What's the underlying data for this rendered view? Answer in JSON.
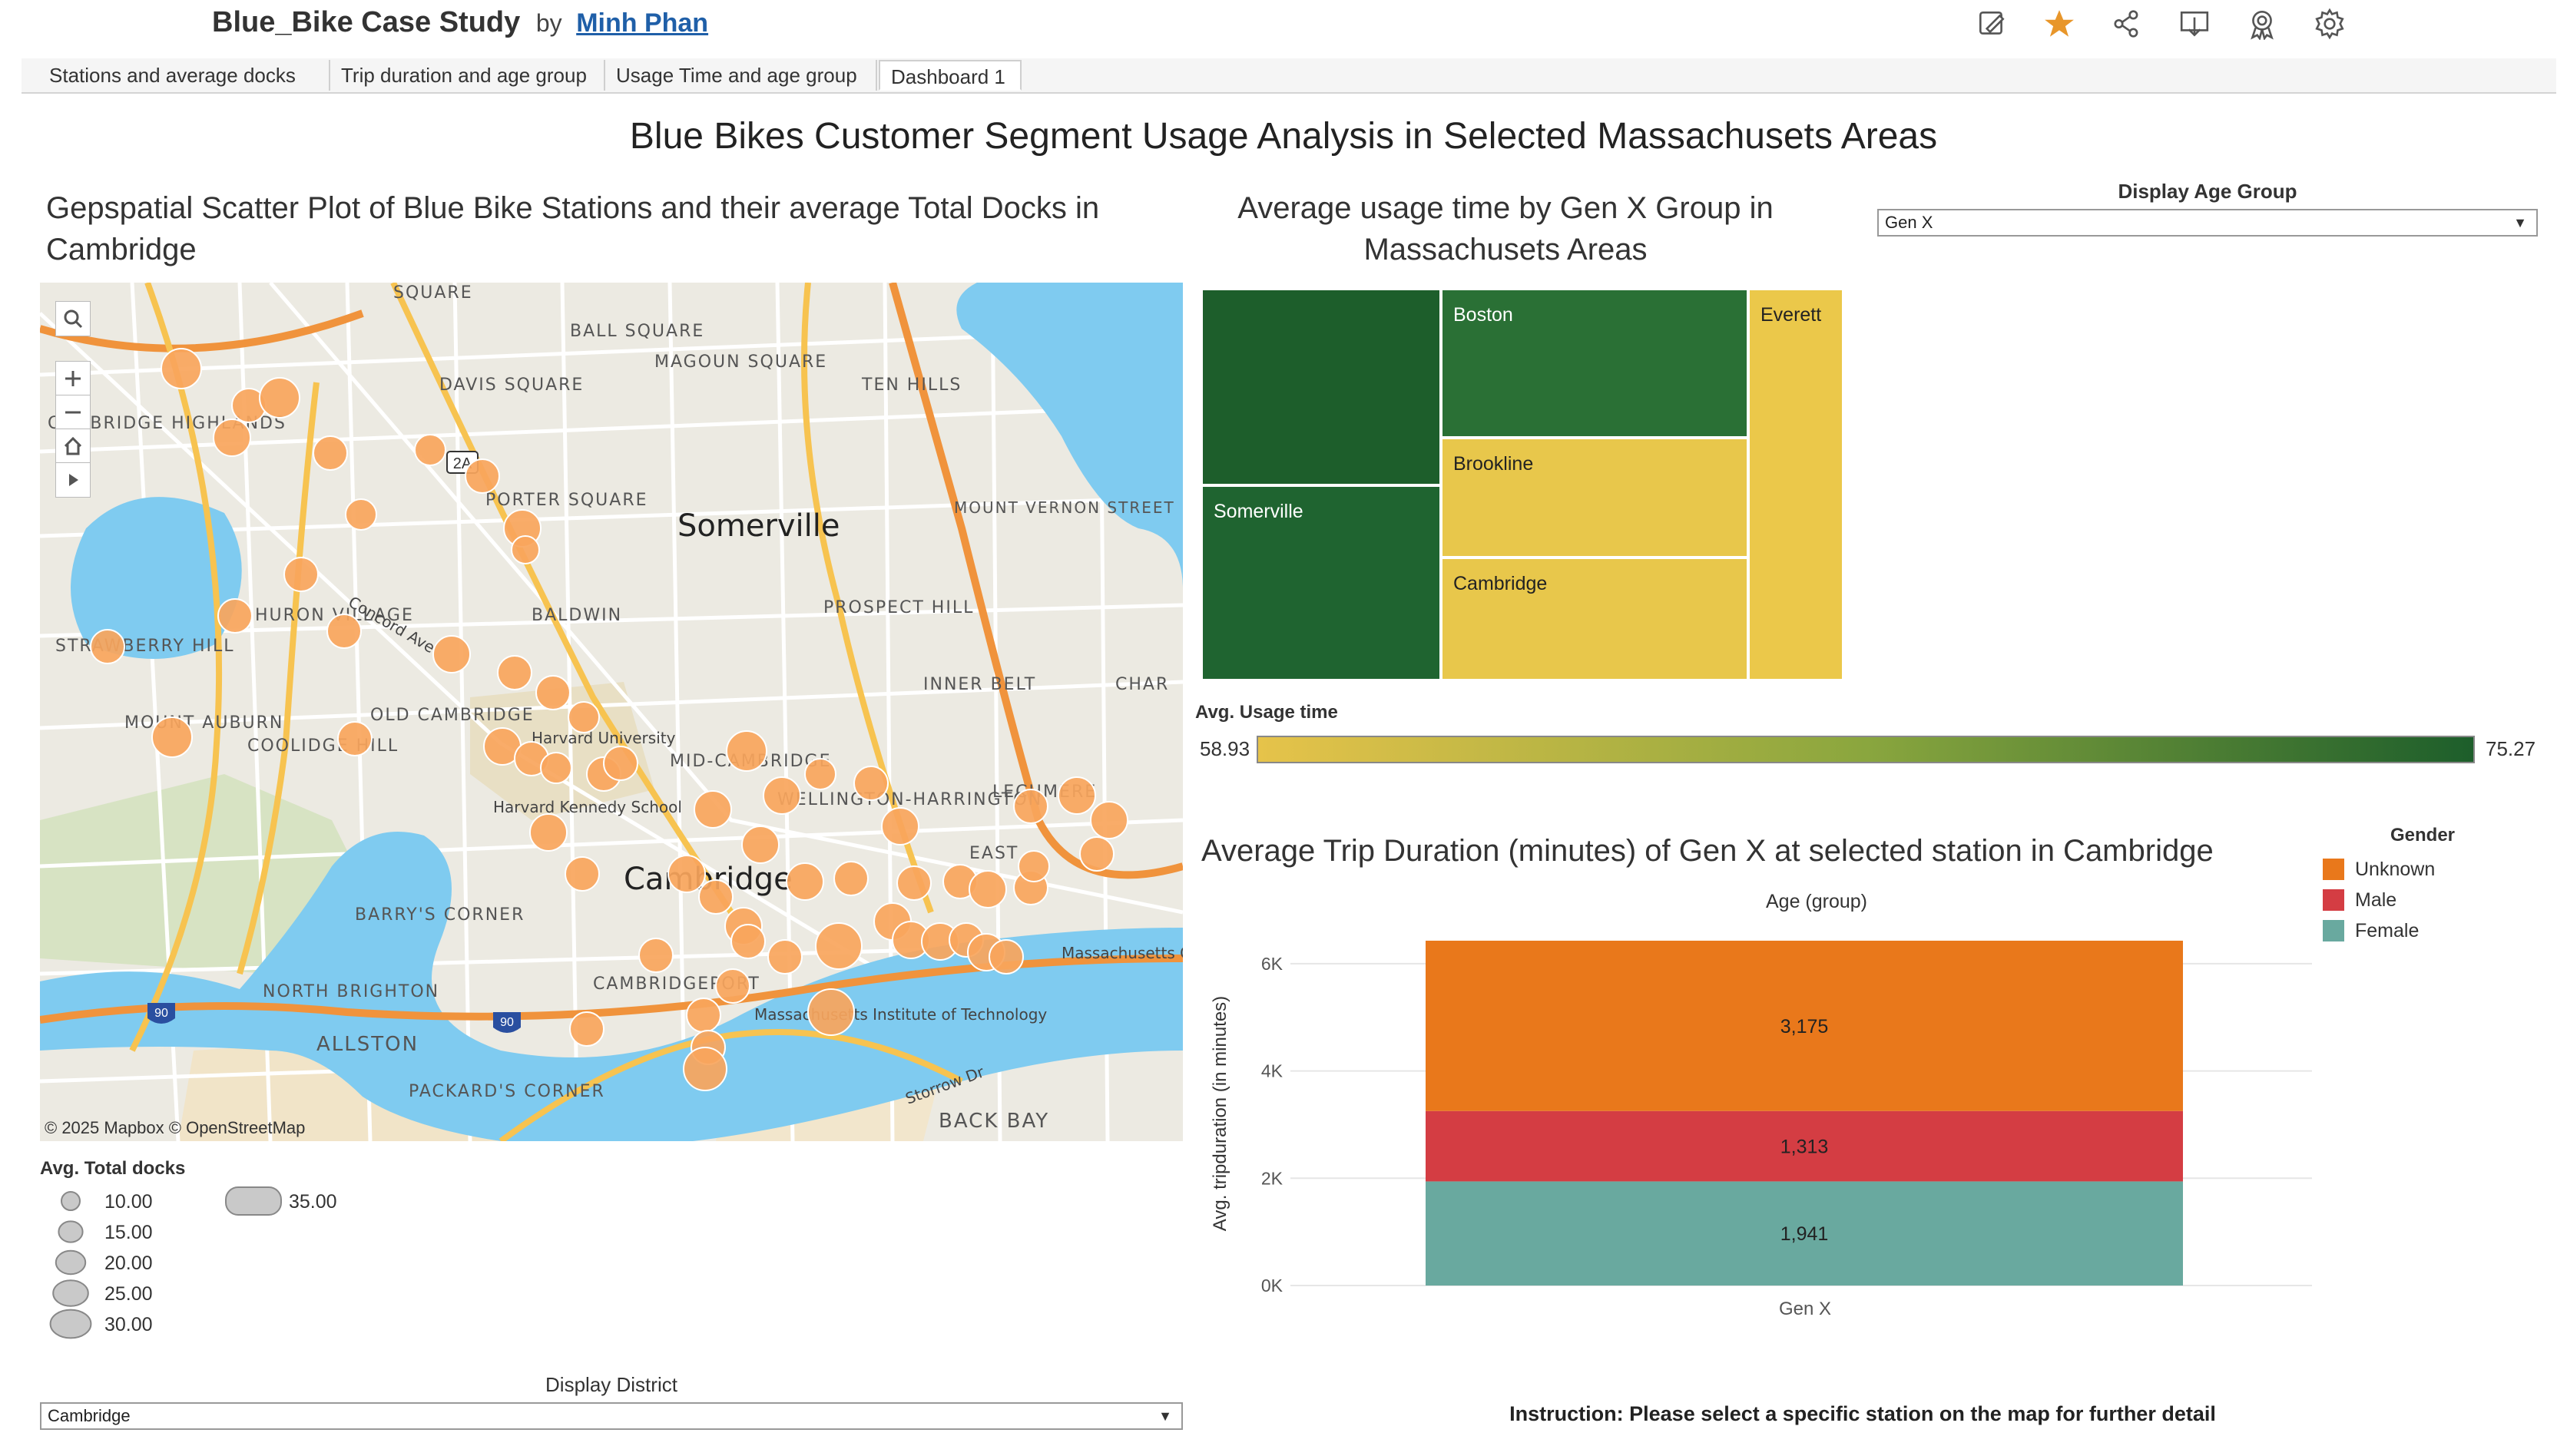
{
  "header": {
    "workbook_title": "Blue_Bike Case Study",
    "by_label": "by",
    "author": "Minh Phan",
    "toolbar_icons": [
      "edit-icon",
      "favorite-star-icon",
      "share-icon",
      "download-icon",
      "metrics-icon",
      "settings-icon"
    ]
  },
  "tabs": [
    {
      "label": "Stations and average docks",
      "active": false
    },
    {
      "label": "Trip duration and age group",
      "active": false
    },
    {
      "label": "Usage Time and age group",
      "active": false
    },
    {
      "label": "Dashboard 1",
      "active": true
    }
  ],
  "dashboard": {
    "title": "Blue Bikes Customer Segment Usage Analysis in Selected Massachusets Areas",
    "instruction": "Instruction: Please select a specific station on the map for further detail"
  },
  "map_panel": {
    "title_line1": "Gepspatial Scatter Plot of Blue Bike Stations and their average Total Docks in",
    "title_line2": "Cambridge",
    "attribution": "© 2025 Mapbox  © OpenStreetMap",
    "place_labels": {
      "somerville": "Somerville",
      "cambridge": "Cambridge",
      "davis_square": "DAVIS SQUARE",
      "ball_square": "BALL SQUARE",
      "magoun_square": "MAGOUN SQUARE",
      "ten_hills": "TEN HILLS",
      "porter_square": "PORTER SQUARE",
      "baldwin": "BALDWIN",
      "huron_village": "HURON VILLAGE",
      "prospect_hill": "PROSPECT HILL",
      "inner_belt": "INNER BELT",
      "old_cambridge": "OLD CAMBRIDGE",
      "harvard_university": "Harvard University",
      "mid_cambridge": "MID-CAMBRIDGE",
      "mount_vernon": "MOUNT VERNON STREET HISTORIC DISTRICT",
      "barrys_corner": "BARRY'S CORNER",
      "north_brighton": "NORTH BRIGHTON",
      "allston": "ALLSTON",
      "packards_corner": "PACKARD'S CORNER",
      "back_bay": "BACK BAY",
      "mit": "Massachusetts Institute of Technology",
      "mgh": "Massachusetts General Hospital",
      "east": "EAST",
      "concord_ave": "Concord Ave",
      "storrow_dr": "Storrow Dr",
      "cooolidge_hill": "COOLIDGE HILL",
      "strawberry_hill": "STRAWBERRY HILL",
      "mount_auburn": "MOUNT AUBURN",
      "cambridge_highlands": "CAMBRIDGE HIGHLANDS",
      "harvard_kennedy": "Harvard Kennedy School",
      "cambridgeport": "CAMBRIDGEPORT",
      "wellington": "WELLINGTON-HARRINGTON",
      "lechmere": "LECHMERE",
      "char": "CHAR",
      "square_top": "SQUARE",
      "route_2a": "2A",
      "route_90": "90"
    },
    "legend": {
      "title": "Avg. Total docks",
      "items": [
        {
          "label": "10.00",
          "value": 10
        },
        {
          "label": "15.00",
          "value": 15
        },
        {
          "label": "20.00",
          "value": 20
        },
        {
          "label": "25.00",
          "value": 25
        },
        {
          "label": "30.00",
          "value": 30
        },
        {
          "label": "35.00",
          "value": 35
        }
      ]
    },
    "district_filter": {
      "title": "Display District",
      "selected": "Cambridge"
    }
  },
  "treemap_panel": {
    "title_line1": "Average usage time by Gen X Group in",
    "title_line2": "Massachusets Areas",
    "age_filter": {
      "title": "Display Age Group",
      "selected": "Gen X"
    },
    "cells": [
      {
        "label": "",
        "color": "#1d5e2b"
      },
      {
        "label": "Somerville",
        "color": "#1f6430"
      },
      {
        "label": "Boston",
        "color": "#2a7035"
      },
      {
        "label": "Brookline",
        "color": "#e8c74b"
      },
      {
        "label": "Cambridge",
        "color": "#e8c74b"
      },
      {
        "label": "Everett",
        "color": "#ebc84a"
      }
    ],
    "color_legend": {
      "title": "Avg. Usage time",
      "min": "58.93",
      "max": "75.27",
      "low_color": "#e6c34a",
      "high_color": "#1d5e2b"
    }
  },
  "chart_data": {
    "type": "bar",
    "title": "Average Trip Duration (minutes) of Gen X at selected station in Cambridge",
    "header_label": "Age (group)",
    "ylabel": "Avg. tripduration (in minutes)",
    "categories": [
      "Gen X"
    ],
    "y_ticks": [
      "0K",
      "2K",
      "4K",
      "6K"
    ],
    "ylim": [
      0,
      6500
    ],
    "stacked": true,
    "series": [
      {
        "name": "Female",
        "values": [
          1941
        ],
        "label": "1,941",
        "color": "#69a99f"
      },
      {
        "name": "Male",
        "values": [
          1313
        ],
        "label": "1,313",
        "color": "#d43d43"
      },
      {
        "name": "Unknown",
        "values": [
          3175
        ],
        "label": "3,175",
        "color": "#e9781b"
      }
    ],
    "legend": {
      "title": "Gender",
      "position": "top-right",
      "order": [
        "Unknown",
        "Male",
        "Female"
      ]
    }
  }
}
